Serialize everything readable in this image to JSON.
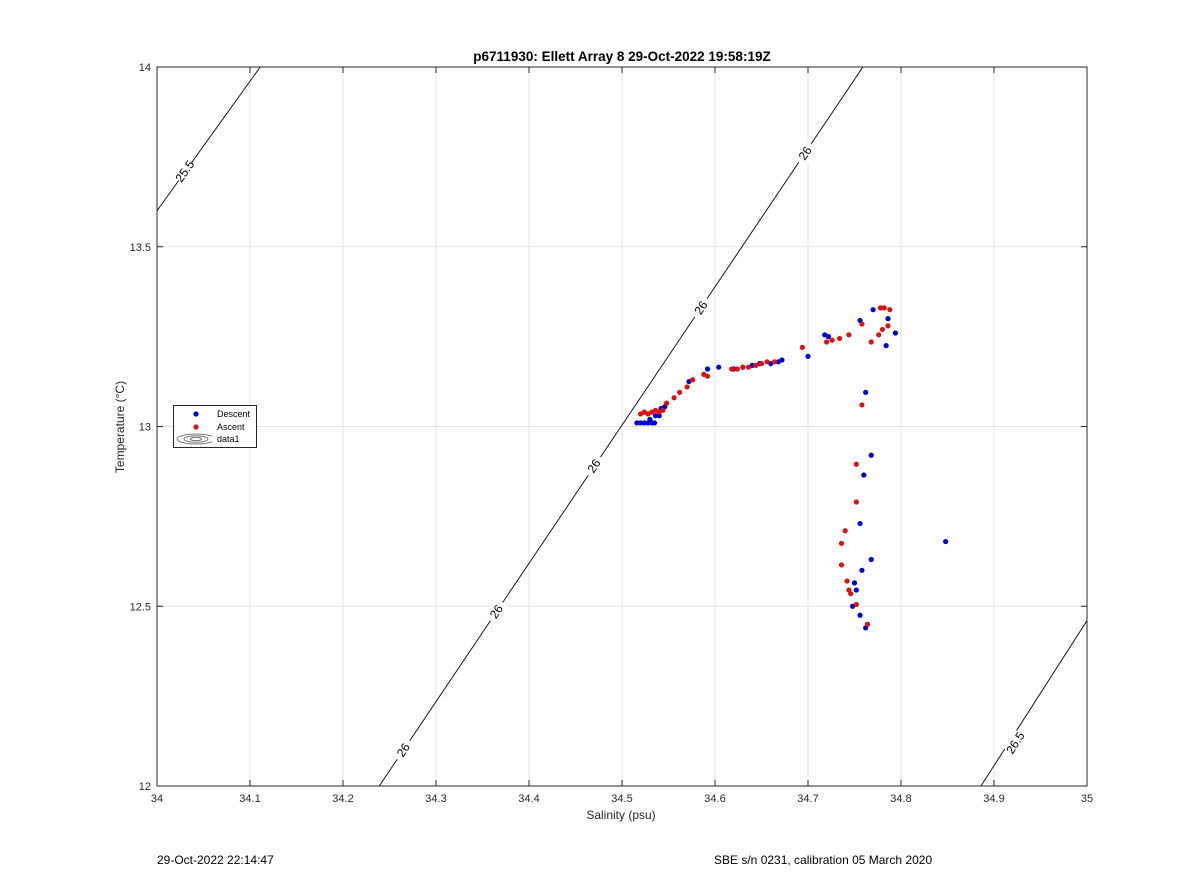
{
  "chart_data": {
    "type": "scatter",
    "title": "p6711930: Ellett Array 8 29-Oct-2022 19:58:19Z",
    "xlabel": "Salinity (psu)",
    "ylabel": "Temperature (°C)",
    "xlim": [
      34,
      35
    ],
    "ylim": [
      12,
      14
    ],
    "xticks": [
      34,
      34.1,
      34.2,
      34.3,
      34.4,
      34.5,
      34.6,
      34.7,
      34.8,
      34.9,
      35
    ],
    "xtick_labels": [
      "34",
      "34.1",
      "34.2",
      "34.3",
      "34.4",
      "34.5",
      "34.6",
      "34.7",
      "34.8",
      "34.9",
      "35"
    ],
    "yticks": [
      12,
      12.5,
      13,
      13.5,
      14
    ],
    "ytick_labels": [
      "12",
      "12.5",
      "13",
      "13.5",
      "14"
    ],
    "grid": true,
    "legend_position": "left",
    "legend": [
      "Descent",
      "Ascent",
      "data1"
    ],
    "series": [
      {
        "name": "Descent",
        "color": "#0000cc",
        "points": [
          [
            34.516,
            13.01
          ],
          [
            34.52,
            13.01
          ],
          [
            34.524,
            13.01
          ],
          [
            34.528,
            13.01
          ],
          [
            34.53,
            13.02
          ],
          [
            34.532,
            13.01
          ],
          [
            34.535,
            13.01
          ],
          [
            34.536,
            13.03
          ],
          [
            34.54,
            13.03
          ],
          [
            34.542,
            13.05
          ],
          [
            34.546,
            13.055
          ],
          [
            34.572,
            13.125
          ],
          [
            34.592,
            13.16
          ],
          [
            34.604,
            13.165
          ],
          [
            34.62,
            13.16
          ],
          [
            34.63,
            13.165
          ],
          [
            34.64,
            13.17
          ],
          [
            34.648,
            13.175
          ],
          [
            34.66,
            13.175
          ],
          [
            34.668,
            13.18
          ],
          [
            34.672,
            13.185
          ],
          [
            34.7,
            13.195
          ],
          [
            34.718,
            13.255
          ],
          [
            34.722,
            13.25
          ],
          [
            34.756,
            13.295
          ],
          [
            34.77,
            13.325
          ],
          [
            34.786,
            13.3
          ],
          [
            34.794,
            13.26
          ],
          [
            34.784,
            13.225
          ],
          [
            34.762,
            13.095
          ],
          [
            34.768,
            12.92
          ],
          [
            34.76,
            12.865
          ],
          [
            34.756,
            12.73
          ],
          [
            34.758,
            12.6
          ],
          [
            34.768,
            12.63
          ],
          [
            34.75,
            12.565
          ],
          [
            34.752,
            12.545
          ],
          [
            34.748,
            12.5
          ],
          [
            34.756,
            12.475
          ],
          [
            34.762,
            12.44
          ],
          [
            34.848,
            12.68
          ]
        ]
      },
      {
        "name": "Ascent",
        "color": "#dd1111",
        "points": [
          [
            34.52,
            13.035
          ],
          [
            34.524,
            13.04
          ],
          [
            34.528,
            13.035
          ],
          [
            34.532,
            13.04
          ],
          [
            34.536,
            13.045
          ],
          [
            34.54,
            13.04
          ],
          [
            34.544,
            13.045
          ],
          [
            34.548,
            13.065
          ],
          [
            34.556,
            13.08
          ],
          [
            34.562,
            13.095
          ],
          [
            34.57,
            13.11
          ],
          [
            34.576,
            13.13
          ],
          [
            34.588,
            13.145
          ],
          [
            34.592,
            13.14
          ],
          [
            34.618,
            13.16
          ],
          [
            34.624,
            13.16
          ],
          [
            34.63,
            13.165
          ],
          [
            34.636,
            13.165
          ],
          [
            34.644,
            13.17
          ],
          [
            34.65,
            13.175
          ],
          [
            34.656,
            13.18
          ],
          [
            34.664,
            13.18
          ],
          [
            34.694,
            13.22
          ],
          [
            34.72,
            13.235
          ],
          [
            34.726,
            13.24
          ],
          [
            34.734,
            13.245
          ],
          [
            34.744,
            13.255
          ],
          [
            34.758,
            13.285
          ],
          [
            34.768,
            13.235
          ],
          [
            34.776,
            13.255
          ],
          [
            34.778,
            13.33
          ],
          [
            34.782,
            13.33
          ],
          [
            34.788,
            13.325
          ],
          [
            34.786,
            13.28
          ],
          [
            34.78,
            13.27
          ],
          [
            34.758,
            13.06
          ],
          [
            34.752,
            12.895
          ],
          [
            34.752,
            12.79
          ],
          [
            34.74,
            12.71
          ],
          [
            34.736,
            12.675
          ],
          [
            34.736,
            12.615
          ],
          [
            34.742,
            12.57
          ],
          [
            34.744,
            12.545
          ],
          [
            34.746,
            12.535
          ],
          [
            34.752,
            12.505
          ],
          [
            34.764,
            12.45
          ]
        ]
      }
    ],
    "contours": [
      {
        "level": "25.5",
        "segments": [
          [
            [
              34,
              13.6
            ],
            [
              34.111,
              14
            ]
          ]
        ],
        "labels": [
          [
            34.03,
            13.71
          ]
        ]
      },
      {
        "level": "26",
        "segments": [
          [
            [
              34.239,
              12
            ],
            [
              34.759,
              14
            ]
          ]
        ],
        "labels": [
          [
            34.265,
            12.1
          ],
          [
            34.365,
            12.485
          ],
          [
            34.47,
            12.89
          ],
          [
            34.585,
            13.33
          ],
          [
            34.697,
            13.76
          ]
        ]
      },
      {
        "level": "26.5",
        "segments": [
          [
            [
              34.886,
              12
            ],
            [
              35,
              12.46
            ]
          ]
        ],
        "labels": [
          [
            34.923,
            12.12
          ]
        ]
      }
    ]
  },
  "footer": {
    "timestamp": "29-Oct-2022 22:14:47",
    "calibration": "SBE s/n 0231, calibration 05 March 2020"
  }
}
